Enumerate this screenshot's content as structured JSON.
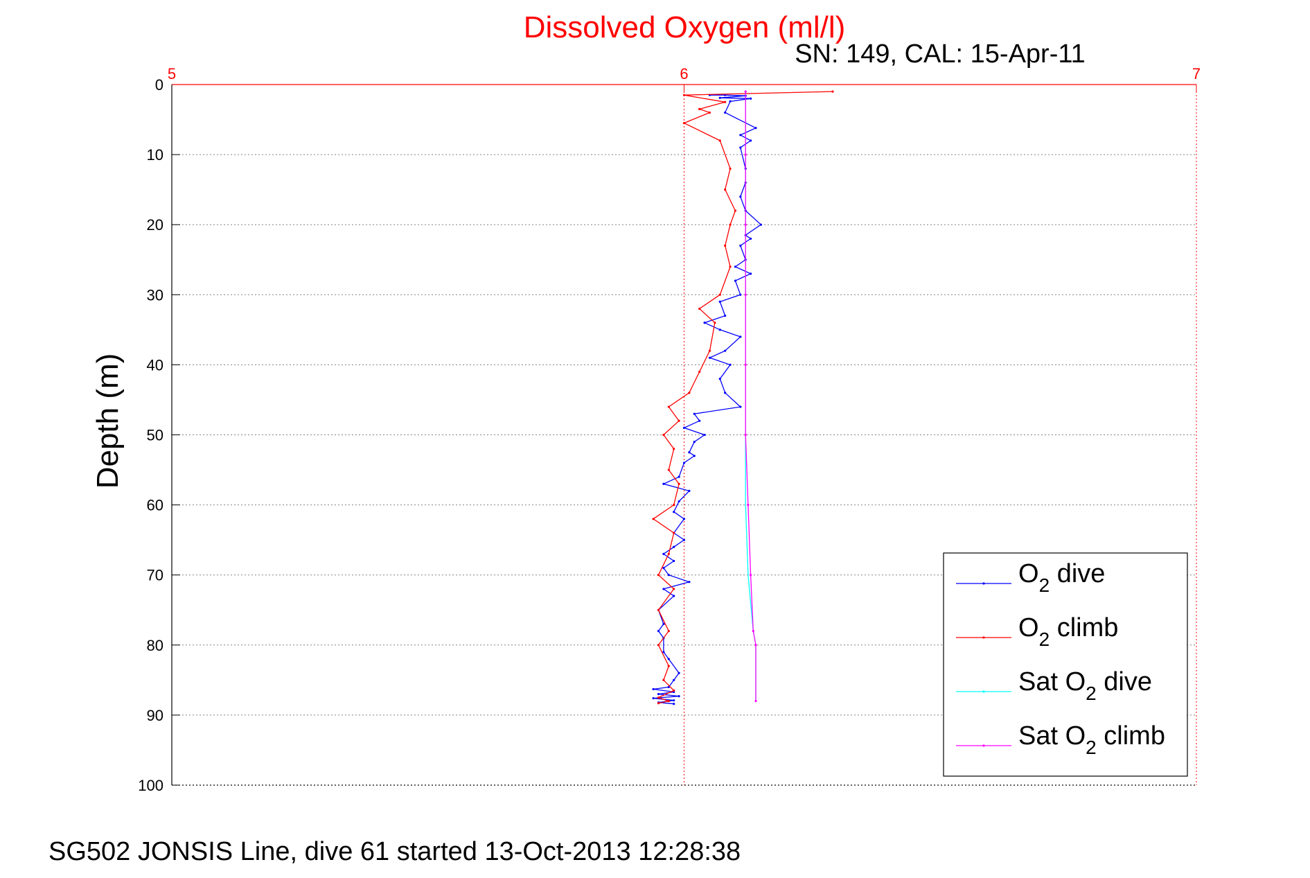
{
  "chart_data": {
    "type": "line",
    "title": "Dissolved Oxygen (ml/l)",
    "subtitle": "SN: 149, CAL: 15-Apr-11",
    "xlabel": "",
    "ylabel": "Depth (m)",
    "xlim": [
      5,
      7
    ],
    "ylim": [
      0,
      100
    ],
    "y_reversed": true,
    "x_axis_position": "top",
    "x_ticks": [
      "5",
      "6",
      "7"
    ],
    "y_ticks": [
      "0",
      "10",
      "20",
      "30",
      "40",
      "50",
      "60",
      "70",
      "80",
      "90",
      "100"
    ],
    "grid": true,
    "legend_position": "bottom-right",
    "colors": {
      "title": "#ff0000",
      "x_axis": "#ff0000",
      "y_axis": "#000000",
      "grid": "#808080",
      "x_grid": "#ff0000"
    },
    "series": [
      {
        "name": "O2 dive",
        "legend": {
          "main": "O",
          "sub": "2",
          "suffix": " dive"
        },
        "color": "#0000ff",
        "marker": true,
        "points": [
          [
            6.05,
            1.5
          ],
          [
            6.08,
            1.5
          ],
          [
            6.12,
            1.6
          ],
          [
            6.07,
            1.9
          ],
          [
            6.13,
            2.0
          ],
          [
            6.09,
            2.4
          ],
          [
            6.08,
            4.0
          ],
          [
            6.14,
            6.2
          ],
          [
            6.11,
            7.2
          ],
          [
            6.13,
            8.0
          ],
          [
            6.11,
            9.0
          ],
          [
            6.12,
            12.0
          ],
          [
            6.12,
            14.0
          ],
          [
            6.11,
            16.0
          ],
          [
            6.12,
            18.0
          ],
          [
            6.15,
            20.0
          ],
          [
            6.12,
            21.5
          ],
          [
            6.13,
            22.0
          ],
          [
            6.11,
            23.0
          ],
          [
            6.12,
            25.0
          ],
          [
            6.1,
            26.0
          ],
          [
            6.13,
            27.0
          ],
          [
            6.1,
            28.0
          ],
          [
            6.11,
            30.0
          ],
          [
            6.07,
            31.0
          ],
          [
            6.08,
            33.0
          ],
          [
            6.04,
            34.0
          ],
          [
            6.07,
            35.0
          ],
          [
            6.11,
            36.0
          ],
          [
            6.08,
            38.0
          ],
          [
            6.05,
            39.0
          ],
          [
            6.09,
            40.0
          ],
          [
            6.07,
            42.0
          ],
          [
            6.08,
            44.0
          ],
          [
            6.11,
            46.0
          ],
          [
            6.02,
            47.0
          ],
          [
            6.03,
            48.0
          ],
          [
            6.0,
            49.0
          ],
          [
            6.04,
            50.0
          ],
          [
            6.02,
            51.0
          ],
          [
            6.01,
            52.5
          ],
          [
            6.02,
            53.0
          ],
          [
            6.0,
            54.0
          ],
          [
            5.99,
            56.0
          ],
          [
            5.96,
            57.0
          ],
          [
            6.01,
            58.0
          ],
          [
            5.99,
            59.5
          ],
          [
            5.98,
            61.0
          ],
          [
            6.0,
            62.0
          ],
          [
            5.98,
            64.0
          ],
          [
            6.0,
            65.0
          ],
          [
            5.98,
            66.0
          ],
          [
            5.96,
            67.0
          ],
          [
            5.98,
            68.0
          ],
          [
            5.96,
            69.0
          ],
          [
            5.97,
            70.0
          ],
          [
            6.01,
            71.0
          ],
          [
            5.96,
            72.0
          ],
          [
            5.98,
            73.0
          ],
          [
            5.95,
            75.0
          ],
          [
            5.96,
            77.0
          ],
          [
            5.95,
            78.0
          ],
          [
            5.96,
            79.0
          ],
          [
            5.96,
            81.0
          ],
          [
            5.97,
            82.0
          ],
          [
            5.99,
            84.0
          ],
          [
            5.98,
            85.0
          ],
          [
            5.97,
            86.0
          ],
          [
            5.94,
            86.3
          ],
          [
            5.98,
            86.7
          ],
          [
            5.95,
            87.0
          ],
          [
            5.99,
            87.3
          ],
          [
            5.94,
            87.6
          ],
          [
            5.98,
            87.9
          ],
          [
            5.95,
            88.2
          ],
          [
            5.98,
            88.4
          ]
        ]
      },
      {
        "name": "O2 climb",
        "legend": {
          "main": "O",
          "sub": "2",
          "suffix": " climb"
        },
        "color": "#ff0000",
        "marker": true,
        "points": [
          [
            6.29,
            1.0
          ],
          [
            6.0,
            1.5
          ],
          [
            6.08,
            2.5
          ],
          [
            6.03,
            3.5
          ],
          [
            6.05,
            4.0
          ],
          [
            6.0,
            5.5
          ],
          [
            6.07,
            8.0
          ],
          [
            6.09,
            12.0
          ],
          [
            6.08,
            15.0
          ],
          [
            6.1,
            18.0
          ],
          [
            6.09,
            20.0
          ],
          [
            6.08,
            23.0
          ],
          [
            6.09,
            26.0
          ],
          [
            6.07,
            30.0
          ],
          [
            6.03,
            32.0
          ],
          [
            6.06,
            34.0
          ],
          [
            6.05,
            38.0
          ],
          [
            6.03,
            41.0
          ],
          [
            6.01,
            44.0
          ],
          [
            5.97,
            46.0
          ],
          [
            5.99,
            48.0
          ],
          [
            5.96,
            50.0
          ],
          [
            5.98,
            52.0
          ],
          [
            5.97,
            55.0
          ],
          [
            5.99,
            57.0
          ],
          [
            5.98,
            60.0
          ],
          [
            5.94,
            62.0
          ],
          [
            5.98,
            64.0
          ],
          [
            5.97,
            67.0
          ],
          [
            5.95,
            70.0
          ],
          [
            5.98,
            72.0
          ],
          [
            5.95,
            75.0
          ],
          [
            5.97,
            78.0
          ],
          [
            5.95,
            80.0
          ],
          [
            5.97,
            83.0
          ],
          [
            5.96,
            85.0
          ],
          [
            5.98,
            86.5
          ],
          [
            5.95,
            87.5
          ],
          [
            5.97,
            88.0
          ],
          [
            5.95,
            88.3
          ]
        ]
      },
      {
        "name": "Sat O2 dive",
        "legend": {
          "main": "Sat O",
          "sub": "2",
          "suffix": " dive"
        },
        "color": "#00ffff",
        "marker": false,
        "points": [
          [
            6.12,
            1.0
          ],
          [
            6.12,
            10.0
          ],
          [
            6.12,
            20.0
          ],
          [
            6.12,
            30.0
          ],
          [
            6.12,
            40.0
          ],
          [
            6.12,
            50.0
          ],
          [
            6.12,
            60.0
          ],
          [
            6.125,
            70.0
          ],
          [
            6.135,
            78.0
          ],
          [
            6.14,
            80.0
          ],
          [
            6.14,
            88.0
          ]
        ]
      },
      {
        "name": "Sat O2 climb",
        "legend": {
          "main": "Sat O",
          "sub": "2",
          "suffix": " climb"
        },
        "color": "#ff00ff",
        "marker": true,
        "points": [
          [
            6.12,
            1.0
          ],
          [
            6.12,
            10.0
          ],
          [
            6.12,
            20.0
          ],
          [
            6.12,
            30.0
          ],
          [
            6.12,
            40.0
          ],
          [
            6.12,
            50.0
          ],
          [
            6.125,
            60.0
          ],
          [
            6.13,
            70.0
          ],
          [
            6.135,
            78.0
          ],
          [
            6.14,
            80.0
          ],
          [
            6.14,
            88.0
          ]
        ]
      }
    ]
  },
  "footer": "SG502 JONSIS Line, dive 61 started 13-Oct-2013 12:28:38"
}
